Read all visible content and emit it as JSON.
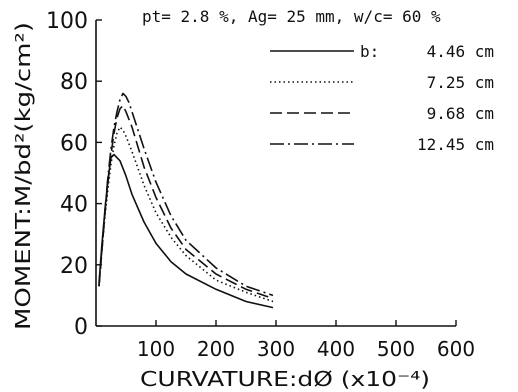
{
  "chart_data": {
    "type": "line",
    "header": "pt= 2.8 %, Ag= 25 mm, w/c= 60 %",
    "xlabel": "CURVATURE:dØ (x10⁻⁴)",
    "ylabel": "MOMENT:M/bd²(kg/cm²)",
    "xlim": [
      0,
      600
    ],
    "ylim": [
      0,
      100
    ],
    "xticks": [
      "100",
      "200",
      "300",
      "400",
      "500",
      "600"
    ],
    "yticks": [
      "0",
      "20",
      "40",
      "60",
      "80",
      "100"
    ],
    "legend_title": "b:",
    "legend_position": "top-right",
    "grid": false,
    "series": [
      {
        "name": "4.46 cm",
        "dash": "solid",
        "x": [
          5,
          10,
          15,
          20,
          25,
          30,
          40,
          50,
          60,
          80,
          100,
          125,
          150,
          200,
          250,
          295
        ],
        "y": [
          14,
          27,
          38,
          48,
          55,
          56,
          54,
          49,
          43,
          34,
          27,
          21,
          17,
          12,
          8,
          6
        ]
      },
      {
        "name": "7.25 cm",
        "dash": "dotted",
        "x": [
          5,
          10,
          15,
          20,
          25,
          30,
          35,
          40,
          45,
          50,
          60,
          80,
          100,
          125,
          150,
          200,
          250,
          295
        ],
        "y": [
          13,
          25,
          36,
          45,
          53,
          59,
          63,
          65,
          64,
          62,
          57,
          46,
          37,
          29,
          23,
          15,
          11,
          8
        ]
      },
      {
        "name": "9.68 cm",
        "dash": "dashed",
        "x": [
          5,
          10,
          15,
          20,
          25,
          30,
          35,
          40,
          45,
          50,
          60,
          80,
          100,
          125,
          150,
          200,
          250,
          295
        ],
        "y": [
          13,
          25,
          37,
          47,
          56,
          63,
          68,
          71,
          72,
          70,
          65,
          52,
          42,
          32,
          25,
          17,
          12,
          9
        ]
      },
      {
        "name": "12.45 cm",
        "dash": "dashdot",
        "x": [
          5,
          10,
          15,
          20,
          25,
          30,
          35,
          40,
          45,
          50,
          55,
          60,
          80,
          100,
          125,
          150,
          200,
          250,
          295
        ],
        "y": [
          13,
          26,
          38,
          49,
          58,
          65,
          70,
          74,
          76,
          75,
          73,
          70,
          58,
          47,
          36,
          28,
          19,
          13,
          10
        ]
      }
    ]
  }
}
